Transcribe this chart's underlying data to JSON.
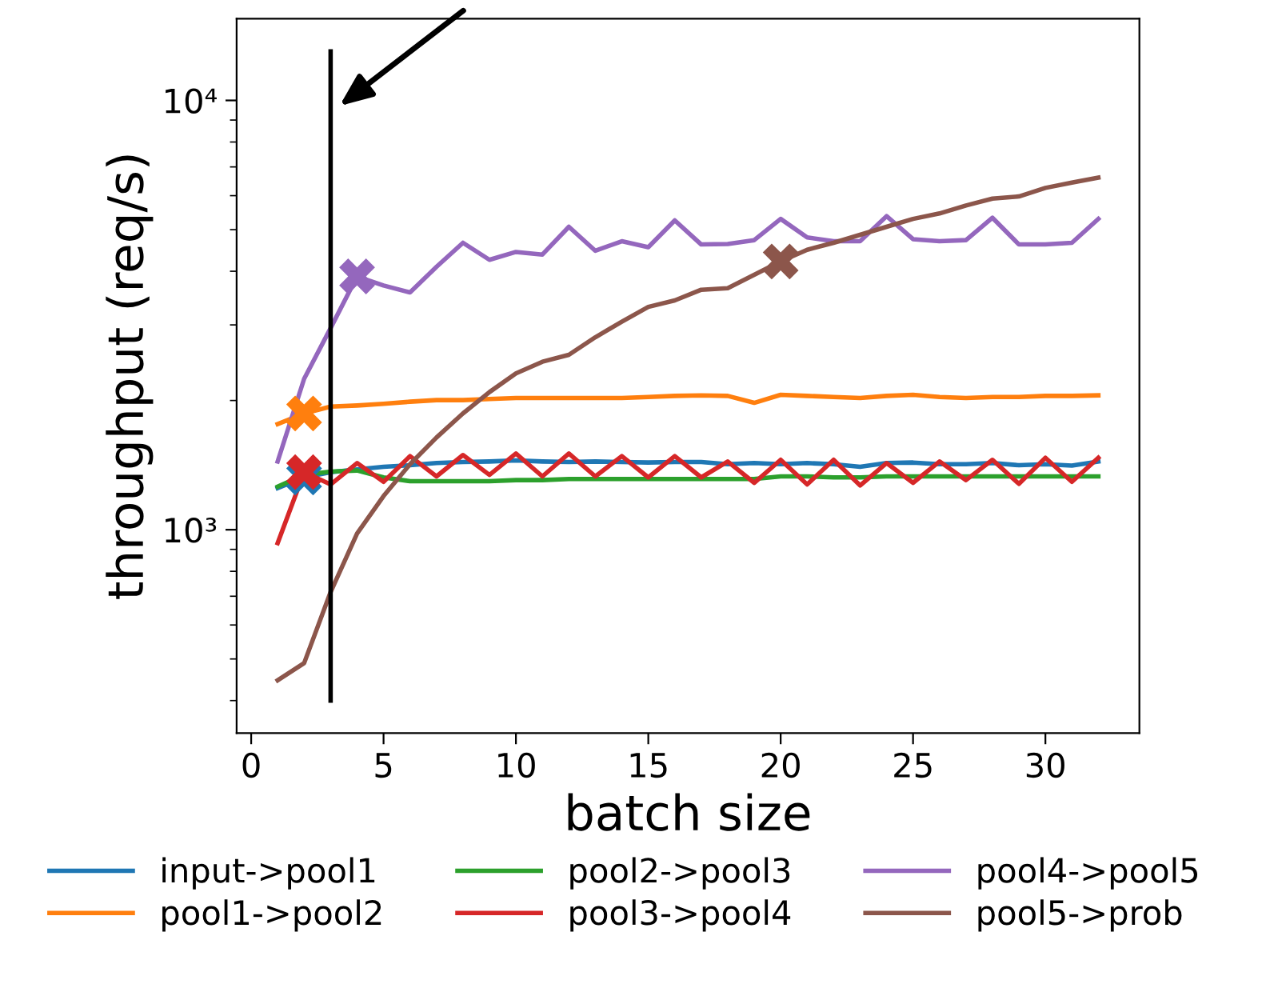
{
  "chart_data": {
    "type": "line",
    "xlabel": "batch size",
    "ylabel": "throughput (req/s)",
    "x": [
      1,
      2,
      3,
      4,
      5,
      6,
      7,
      8,
      9,
      10,
      11,
      12,
      13,
      14,
      15,
      16,
      17,
      18,
      19,
      20,
      21,
      22,
      23,
      24,
      25,
      26,
      27,
      28,
      29,
      30,
      31,
      32
    ],
    "log": "y",
    "xlim": [
      -0.55,
      33.55
    ],
    "ylim": [
      336,
      15500
    ],
    "xticks": [
      0,
      5,
      10,
      15,
      20,
      25,
      30
    ],
    "yticks": [
      {
        "value": 400,
        "label": null
      },
      {
        "value": 500,
        "label": null
      },
      {
        "value": 600,
        "label": null
      },
      {
        "value": 700,
        "label": null
      },
      {
        "value": 800,
        "label": null
      },
      {
        "value": 900,
        "label": null
      },
      {
        "value": 1000,
        "label": "10³"
      },
      {
        "value": 2000,
        "label": null
      },
      {
        "value": 3000,
        "label": null
      },
      {
        "value": 4000,
        "label": null
      },
      {
        "value": 5000,
        "label": null
      },
      {
        "value": 6000,
        "label": null
      },
      {
        "value": 7000,
        "label": null
      },
      {
        "value": 8000,
        "label": null
      },
      {
        "value": 9000,
        "label": null
      },
      {
        "value": 10000,
        "label": "10⁴"
      }
    ],
    "grid": false,
    "legend": "bottom",
    "marker": "none",
    "line_style": "solid",
    "series": [
      {
        "name": "input->pool1",
        "color": "#1f77b4",
        "values": [
          1250,
          1324,
          1362,
          1382,
          1402,
          1413,
          1430,
          1438,
          1442,
          1450,
          1442,
          1438,
          1442,
          1438,
          1434,
          1438,
          1438,
          1421,
          1430,
          1421,
          1430,
          1421,
          1402,
          1430,
          1434,
          1421,
          1421,
          1430,
          1413,
          1421,
          1410,
          1442
        ]
      },
      {
        "name": "pool1->pool2",
        "color": "#ff7f0e",
        "values": [
          1762,
          1866,
          1936,
          1947,
          1964,
          1987,
          2004,
          2004,
          2016,
          2027,
          2027,
          2027,
          2027,
          2027,
          2038,
          2050,
          2056,
          2050,
          1975,
          2062,
          2050,
          2038,
          2027,
          2050,
          2062,
          2038,
          2027,
          2038,
          2038,
          2050,
          2050,
          2056
        ]
      },
      {
        "name": "pool2->pool3",
        "color": "#2ca02c",
        "values": [
          1260,
          1342,
          1366,
          1374,
          1324,
          1297,
          1297,
          1297,
          1297,
          1305,
          1305,
          1313,
          1313,
          1313,
          1313,
          1313,
          1313,
          1313,
          1313,
          1331,
          1331,
          1324,
          1324,
          1331,
          1331,
          1331,
          1331,
          1331,
          1331,
          1331,
          1331,
          1331
        ]
      },
      {
        "name": "pool3->pool4",
        "color": "#d62728",
        "values": [
          931,
          1362,
          1275,
          1430,
          1293,
          1484,
          1331,
          1493,
          1342,
          1505,
          1331,
          1505,
          1331,
          1484,
          1324,
          1484,
          1324,
          1442,
          1286,
          1455,
          1275,
          1455,
          1268,
          1430,
          1286,
          1442,
          1305,
          1455,
          1279,
          1471,
          1293,
          1471
        ]
      },
      {
        "name": "pool4->pool5",
        "color": "#9467bd",
        "values": [
          1442,
          2247,
          2949,
          3891,
          3706,
          3571,
          4096,
          4660,
          4253,
          4436,
          4375,
          5077,
          4464,
          4699,
          4552,
          5254,
          4618,
          4631,
          4727,
          5297,
          4795,
          4699,
          4699,
          5375,
          4752,
          4699,
          4727,
          5329,
          4618,
          4618,
          4660,
          5297
        ]
      },
      {
        "name": "pool5->prob",
        "color": "#8c564b",
        "values": [
          446,
          489,
          716,
          980,
          1198,
          1421,
          1640,
          1866,
          2092,
          2312,
          2462,
          2556,
          2808,
          3051,
          3304,
          3421,
          3622,
          3654,
          3925,
          4216,
          4488,
          4660,
          4864,
          5077,
          5297,
          5454,
          5692,
          5907,
          5975,
          6255,
          6437,
          6607
        ]
      },
      {
        "type": "scatter",
        "marker": "cross",
        "x": [
          2,
          2,
          2,
          4,
          20
        ],
        "colors": [
          "#1f77b4",
          "#ff7f0e",
          "#d62728",
          "#9467bd",
          "#8c564b"
        ],
        "values": [
          1324,
          1866,
          1362,
          3891,
          4216
        ]
      },
      {
        "type": "line",
        "color": "#000000",
        "x": [
          3,
          3
        ],
        "values": [
          400,
          13000
        ]
      }
    ]
  }
}
